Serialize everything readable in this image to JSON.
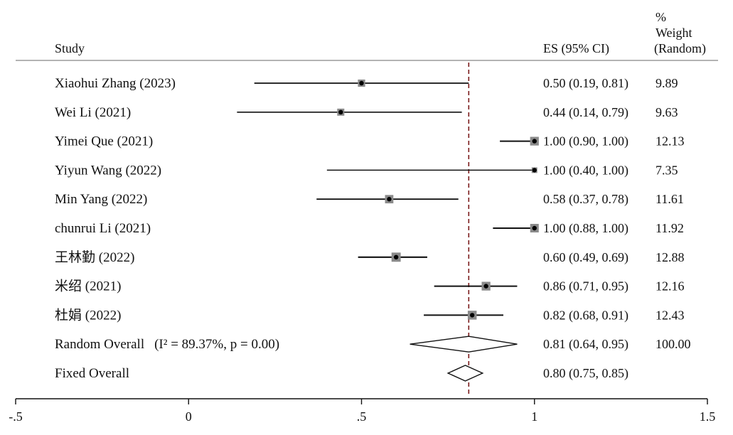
{
  "chart_data": {
    "type": "forest",
    "header": {
      "study": "Study",
      "es": "ES (95% CI)",
      "weight_line1": "%",
      "weight_line2": "Weight",
      "weight_line3": "(Random)"
    },
    "xlim": [
      -0.5,
      1.5
    ],
    "ticks": [
      {
        "value": -0.5,
        "label": "-.5"
      },
      {
        "value": 0,
        "label": "0"
      },
      {
        "value": 0.5,
        "label": ".5"
      },
      {
        "value": 1,
        "label": "1"
      },
      {
        "value": 1.5,
        "label": "1.5"
      }
    ],
    "overall_line": 0.81,
    "studies": [
      {
        "label": "Xiaohui Zhang (2023)",
        "es": 0.5,
        "lo": 0.19,
        "hi": 0.81,
        "es_text": "0.50 (0.19, 0.81)",
        "weight": "9.89",
        "weight_value": 9.89
      },
      {
        "label": "Wei Li (2021)",
        "es": 0.44,
        "lo": 0.14,
        "hi": 0.79,
        "es_text": "0.44 (0.14, 0.79)",
        "weight": "9.63",
        "weight_value": 9.63
      },
      {
        "label": "Yimei Que (2021)",
        "es": 1.0,
        "lo": 0.9,
        "hi": 1.0,
        "es_text": "1.00 (0.90, 1.00)",
        "weight": "12.13",
        "weight_value": 12.13
      },
      {
        "label": "Yiyun Wang (2022)",
        "es": 1.0,
        "lo": 0.4,
        "hi": 1.0,
        "es_text": "1.00 (0.40, 1.00)",
        "weight": "7.35",
        "weight_value": 7.35
      },
      {
        "label": "Min Yang (2022)",
        "es": 0.58,
        "lo": 0.37,
        "hi": 0.78,
        "es_text": "0.58 (0.37, 0.78)",
        "weight": "11.61",
        "weight_value": 11.61
      },
      {
        "label": "chunrui Li (2021)",
        "es": 1.0,
        "lo": 0.88,
        "hi": 1.0,
        "es_text": "1.00 (0.88, 1.00)",
        "weight": "11.92",
        "weight_value": 11.92
      },
      {
        "label": "王林勤 (2022)",
        "es": 0.6,
        "lo": 0.49,
        "hi": 0.69,
        "es_text": "0.60 (0.49, 0.69)",
        "weight": "12.88",
        "weight_value": 12.88
      },
      {
        "label": "米绍 (2021)",
        "es": 0.86,
        "lo": 0.71,
        "hi": 0.95,
        "es_text": "0.86 (0.71, 0.95)",
        "weight": "12.16",
        "weight_value": 12.16
      },
      {
        "label": "杜娟 (2022)",
        "es": 0.82,
        "lo": 0.68,
        "hi": 0.91,
        "es_text": "0.82 (0.68, 0.91)",
        "weight": "12.43",
        "weight_value": 12.43
      }
    ],
    "overall": [
      {
        "label": "Random Overall",
        "i2_text": "(I² = 89.37%, p = 0.00)",
        "es": 0.81,
        "lo": 0.64,
        "hi": 0.95,
        "es_text": "0.81 (0.64, 0.95)",
        "weight": "100.00"
      },
      {
        "label": "Fixed Overall",
        "i2_text": "",
        "es": 0.8,
        "lo": 0.75,
        "hi": 0.85,
        "es_text": "0.80 (0.75, 0.85)",
        "weight": ""
      }
    ],
    "colors": {
      "text": "#111111",
      "line": "#111111",
      "marker_box": "#8a8a8a",
      "ref_line": "#7a1a1a",
      "divider": "#9a9a9a"
    }
  }
}
